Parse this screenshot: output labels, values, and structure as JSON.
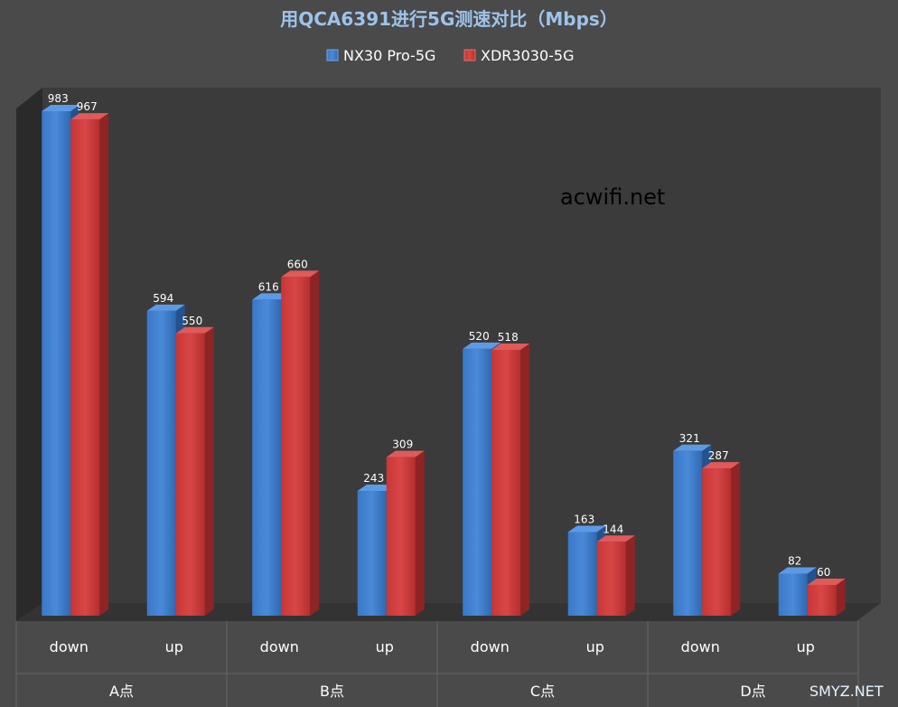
{
  "chart_data": {
    "type": "bar",
    "title": "用QCA6391进行5G测速对比（Mbps）",
    "categories": [
      "down",
      "up",
      "down",
      "up",
      "down",
      "up",
      "down",
      "up"
    ],
    "groups": [
      "A点",
      "B点",
      "C点",
      "D点"
    ],
    "series": [
      {
        "name": "NX30 Pro-5G",
        "values": [
          983,
          594,
          616,
          243,
          520,
          163,
          321,
          82
        ]
      },
      {
        "name": "XDR3030-5G",
        "values": [
          967,
          550,
          660,
          309,
          518,
          144,
          287,
          60
        ]
      }
    ],
    "ylim": [
      0,
      1000
    ],
    "grid": false,
    "legend": "top",
    "colors": {
      "series_1": "#3f7fcf",
      "series_2": "#cf3a3a",
      "background": "#4a4a4a",
      "plot_back": "#3d3d3d",
      "title": "#9ec3ea"
    }
  },
  "watermark": "acwifi.net",
  "corner_watermark": "SMYZ.NET"
}
